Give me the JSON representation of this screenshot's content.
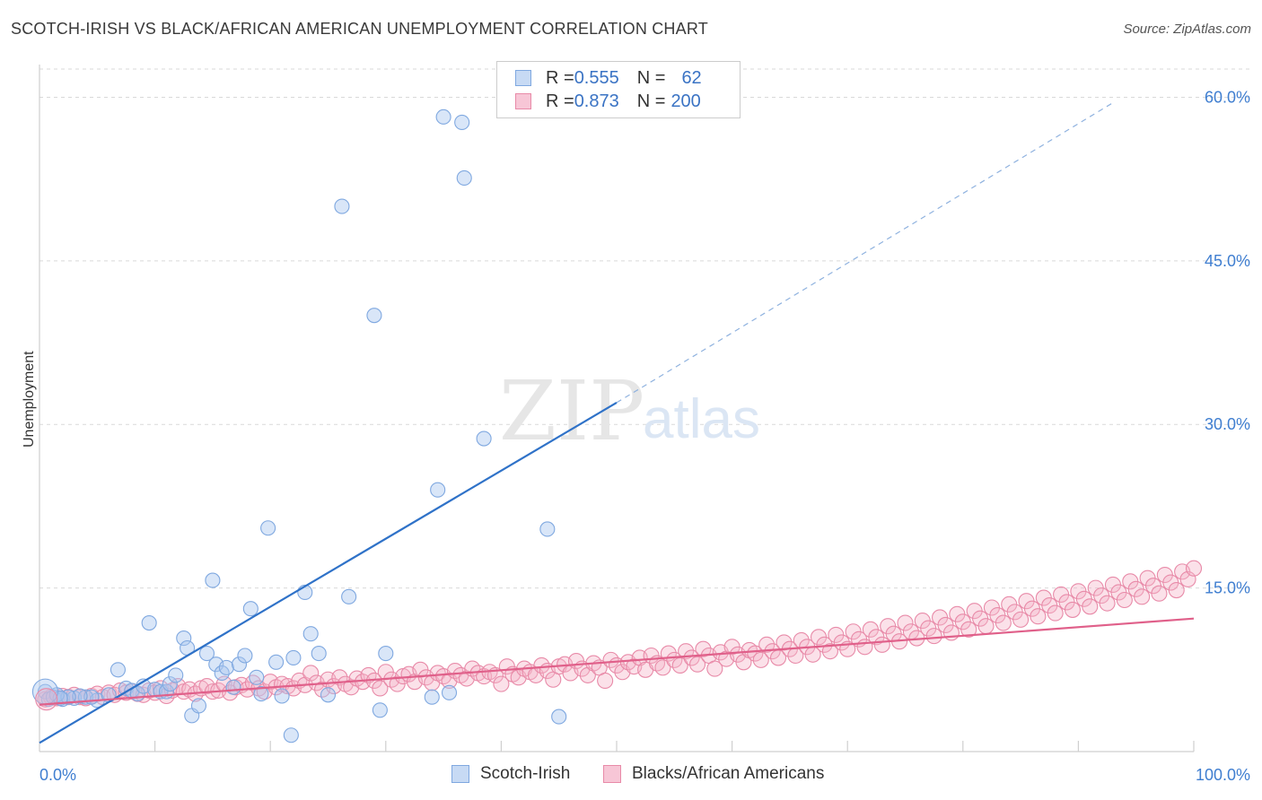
{
  "title": "SCOTCH-IRISH VS BLACK/AFRICAN AMERICAN UNEMPLOYMENT CORRELATION CHART",
  "source": "Source: ZipAtlas.com",
  "watermark": {
    "zip": "ZIP",
    "atlas": "atlas"
  },
  "legend": {
    "rows": [
      {
        "r_label": "R = ",
        "r_value": "0.555",
        "n_label": "N = ",
        "n_value": "62",
        "color": "#7fa8e0",
        "fill": "#c7daf4"
      },
      {
        "r_label": "R = ",
        "r_value": "0.873",
        "n_label": "N = ",
        "n_value": "200",
        "color": "#e88aa8",
        "fill": "#f7c6d6"
      }
    ]
  },
  "bottom_legend": [
    {
      "label": "Scotch-Irish",
      "color": "#7fa8e0",
      "fill": "#c7daf4"
    },
    {
      "label": "Blacks/African Americans",
      "color": "#e88aa8",
      "fill": "#f7c6d6"
    }
  ],
  "chart_data": {
    "type": "scatter",
    "title": "SCOTCH-IRISH VS BLACK/AFRICAN AMERICAN UNEMPLOYMENT CORRELATION CHART",
    "xlabel": "",
    "ylabel": "Unemployment",
    "xlim": [
      0,
      100
    ],
    "ylim": [
      0,
      63
    ],
    "x_tick_labels": [
      "0.0%",
      "100.0%"
    ],
    "y_ticks": [
      15,
      30,
      45,
      60
    ],
    "y_tick_labels": [
      "15.0%",
      "30.0%",
      "45.0%",
      "60.0%"
    ],
    "grid": true,
    "series": [
      {
        "name": "Scotch-Irish",
        "color": "#3f7ed0",
        "points": [
          [
            0.5,
            5.5
          ],
          [
            0.8,
            4.8
          ],
          [
            1.2,
            5.0
          ],
          [
            2.0,
            4.8
          ],
          [
            3.0,
            4.9
          ],
          [
            4.0,
            5.0
          ],
          [
            5.0,
            4.7
          ],
          [
            6.0,
            5.2
          ],
          [
            6.8,
            7.5
          ],
          [
            7.5,
            5.8
          ],
          [
            8.0,
            5.6
          ],
          [
            8.5,
            5.3
          ],
          [
            9.0,
            6.0
          ],
          [
            9.5,
            11.8
          ],
          [
            10.0,
            5.7
          ],
          [
            10.5,
            5.5
          ],
          [
            11.0,
            5.5
          ],
          [
            11.3,
            6.2
          ],
          [
            11.8,
            7.0
          ],
          [
            12.5,
            10.4
          ],
          [
            12.8,
            9.5
          ],
          [
            13.2,
            3.3
          ],
          [
            13.8,
            4.2
          ],
          [
            14.5,
            9.0
          ],
          [
            15.0,
            15.7
          ],
          [
            15.3,
            8.0
          ],
          [
            15.8,
            7.2
          ],
          [
            16.2,
            7.7
          ],
          [
            16.8,
            5.9
          ],
          [
            17.3,
            8.0
          ],
          [
            17.8,
            8.8
          ],
          [
            18.3,
            13.1
          ],
          [
            18.8,
            6.8
          ],
          [
            19.2,
            5.3
          ],
          [
            19.8,
            20.5
          ],
          [
            20.5,
            8.2
          ],
          [
            21.0,
            5.1
          ],
          [
            21.8,
            1.5
          ],
          [
            22.0,
            8.6
          ],
          [
            23.0,
            14.6
          ],
          [
            23.5,
            10.8
          ],
          [
            24.2,
            9.0
          ],
          [
            25.0,
            5.2
          ],
          [
            26.2,
            50.0
          ],
          [
            26.8,
            14.2
          ],
          [
            29.0,
            40.0
          ],
          [
            29.5,
            3.8
          ],
          [
            30.0,
            9.0
          ],
          [
            34.0,
            5.0
          ],
          [
            34.5,
            24.0
          ],
          [
            35.0,
            58.2
          ],
          [
            35.5,
            5.4
          ],
          [
            36.6,
            57.7
          ],
          [
            36.8,
            52.6
          ],
          [
            38.5,
            28.7
          ],
          [
            44.0,
            20.4
          ],
          [
            45.0,
            3.2
          ],
          [
            4.5,
            5.0
          ],
          [
            3.5,
            5.1
          ],
          [
            2.5,
            5.0
          ],
          [
            1.5,
            5.2
          ],
          [
            1.8,
            4.9
          ]
        ]
      },
      {
        "name": "Blacks/African Americans",
        "color": "#e0608a",
        "points": [
          [
            0.5,
            4.8
          ],
          [
            1.0,
            5.0
          ],
          [
            1.5,
            4.9
          ],
          [
            2.0,
            5.1
          ],
          [
            2.5,
            5.0
          ],
          [
            3.0,
            5.2
          ],
          [
            3.5,
            5.0
          ],
          [
            4.0,
            4.9
          ],
          [
            4.5,
            5.1
          ],
          [
            5.0,
            5.3
          ],
          [
            5.5,
            5.0
          ],
          [
            6.0,
            5.4
          ],
          [
            6.5,
            5.2
          ],
          [
            7.0,
            5.6
          ],
          [
            7.5,
            5.4
          ],
          [
            8.0,
            5.5
          ],
          [
            8.5,
            5.3
          ],
          [
            9.0,
            5.2
          ],
          [
            9.5,
            5.6
          ],
          [
            10.0,
            5.4
          ],
          [
            10.5,
            5.8
          ],
          [
            11.0,
            5.1
          ],
          [
            11.5,
            5.6
          ],
          [
            12.0,
            6.0
          ],
          [
            12.5,
            5.5
          ],
          [
            13.0,
            5.7
          ],
          [
            13.5,
            5.3
          ],
          [
            14.0,
            5.8
          ],
          [
            14.5,
            6.0
          ],
          [
            15.0,
            5.5
          ],
          [
            15.5,
            5.6
          ],
          [
            16.0,
            6.2
          ],
          [
            16.5,
            5.4
          ],
          [
            17.0,
            5.9
          ],
          [
            17.5,
            6.1
          ],
          [
            18.0,
            5.7
          ],
          [
            18.5,
            6.3
          ],
          [
            19.0,
            5.8
          ],
          [
            19.5,
            5.5
          ],
          [
            20.0,
            6.4
          ],
          [
            20.5,
            5.9
          ],
          [
            21.0,
            6.2
          ],
          [
            21.5,
            6.0
          ],
          [
            22.0,
            5.8
          ],
          [
            22.5,
            6.5
          ],
          [
            23.0,
            6.1
          ],
          [
            23.5,
            7.2
          ],
          [
            24.0,
            6.3
          ],
          [
            24.5,
            5.7
          ],
          [
            25.0,
            6.6
          ],
          [
            25.5,
            6.0
          ],
          [
            26.0,
            6.8
          ],
          [
            26.5,
            6.2
          ],
          [
            27.0,
            5.9
          ],
          [
            27.5,
            6.7
          ],
          [
            28.0,
            6.4
          ],
          [
            28.5,
            7.0
          ],
          [
            29.0,
            6.5
          ],
          [
            29.5,
            5.8
          ],
          [
            30.0,
            7.3
          ],
          [
            30.5,
            6.6
          ],
          [
            31.0,
            6.2
          ],
          [
            31.5,
            6.9
          ],
          [
            32.0,
            7.1
          ],
          [
            32.5,
            6.4
          ],
          [
            33.0,
            7.5
          ],
          [
            33.5,
            6.8
          ],
          [
            34.0,
            6.3
          ],
          [
            34.5,
            7.2
          ],
          [
            35.0,
            6.9
          ],
          [
            35.5,
            6.5
          ],
          [
            36.0,
            7.4
          ],
          [
            36.5,
            7.0
          ],
          [
            37.0,
            6.7
          ],
          [
            37.5,
            7.6
          ],
          [
            38.0,
            7.2
          ],
          [
            38.5,
            6.9
          ],
          [
            39.0,
            7.3
          ],
          [
            39.5,
            7.0
          ],
          [
            40.0,
            6.2
          ],
          [
            40.5,
            7.8
          ],
          [
            41.0,
            7.1
          ],
          [
            41.5,
            6.8
          ],
          [
            42.0,
            7.6
          ],
          [
            42.5,
            7.3
          ],
          [
            43.0,
            7.0
          ],
          [
            43.5,
            7.9
          ],
          [
            44.0,
            7.4
          ],
          [
            44.5,
            6.6
          ],
          [
            45.0,
            7.8
          ],
          [
            45.5,
            8.0
          ],
          [
            46.0,
            7.2
          ],
          [
            46.5,
            8.3
          ],
          [
            47.0,
            7.6
          ],
          [
            47.5,
            7.0
          ],
          [
            48.0,
            8.1
          ],
          [
            48.5,
            7.7
          ],
          [
            49.0,
            6.5
          ],
          [
            49.5,
            8.4
          ],
          [
            50.0,
            7.9
          ],
          [
            50.5,
            7.3
          ],
          [
            51.0,
            8.2
          ],
          [
            51.5,
            7.8
          ],
          [
            52.0,
            8.6
          ],
          [
            52.5,
            7.5
          ],
          [
            53.0,
            8.8
          ],
          [
            53.5,
            8.1
          ],
          [
            54.0,
            7.7
          ],
          [
            54.5,
            9.0
          ],
          [
            55.0,
            8.4
          ],
          [
            55.5,
            7.9
          ],
          [
            56.0,
            9.2
          ],
          [
            56.5,
            8.6
          ],
          [
            57.0,
            8.0
          ],
          [
            57.5,
            9.4
          ],
          [
            58.0,
            8.8
          ],
          [
            58.5,
            7.6
          ],
          [
            59.0,
            9.1
          ],
          [
            59.5,
            8.5
          ],
          [
            60.0,
            9.6
          ],
          [
            60.5,
            8.9
          ],
          [
            61.0,
            8.2
          ],
          [
            61.5,
            9.3
          ],
          [
            62.0,
            9.0
          ],
          [
            62.5,
            8.4
          ],
          [
            63.0,
            9.8
          ],
          [
            63.5,
            9.2
          ],
          [
            64.0,
            8.6
          ],
          [
            64.5,
            10.0
          ],
          [
            65.0,
            9.4
          ],
          [
            65.5,
            8.8
          ],
          [
            66.0,
            10.2
          ],
          [
            66.5,
            9.6
          ],
          [
            67.0,
            8.9
          ],
          [
            67.5,
            10.5
          ],
          [
            68.0,
            9.8
          ],
          [
            68.5,
            9.2
          ],
          [
            69.0,
            10.7
          ],
          [
            69.5,
            10.0
          ],
          [
            70.0,
            9.4
          ],
          [
            70.5,
            11.0
          ],
          [
            71.0,
            10.3
          ],
          [
            71.5,
            9.6
          ],
          [
            72.0,
            11.2
          ],
          [
            72.5,
            10.5
          ],
          [
            73.0,
            9.8
          ],
          [
            73.5,
            11.5
          ],
          [
            74.0,
            10.8
          ],
          [
            74.5,
            10.1
          ],
          [
            75.0,
            11.8
          ],
          [
            75.5,
            11.0
          ],
          [
            76.0,
            10.4
          ],
          [
            76.5,
            12.0
          ],
          [
            77.0,
            11.3
          ],
          [
            77.5,
            10.6
          ],
          [
            78.0,
            12.3
          ],
          [
            78.5,
            11.6
          ],
          [
            79.0,
            10.9
          ],
          [
            79.5,
            12.6
          ],
          [
            80.0,
            11.9
          ],
          [
            80.5,
            11.2
          ],
          [
            81.0,
            12.9
          ],
          [
            81.5,
            12.2
          ],
          [
            82.0,
            11.5
          ],
          [
            82.5,
            13.2
          ],
          [
            83.0,
            12.5
          ],
          [
            83.5,
            11.8
          ],
          [
            84.0,
            13.5
          ],
          [
            84.5,
            12.8
          ],
          [
            85.0,
            12.1
          ],
          [
            85.5,
            13.8
          ],
          [
            86.0,
            13.1
          ],
          [
            86.5,
            12.4
          ],
          [
            87.0,
            14.1
          ],
          [
            87.5,
            13.4
          ],
          [
            88.0,
            12.7
          ],
          [
            88.5,
            14.4
          ],
          [
            89.0,
            13.7
          ],
          [
            89.5,
            13.0
          ],
          [
            90.0,
            14.7
          ],
          [
            90.5,
            14.0
          ],
          [
            91.0,
            13.3
          ],
          [
            91.5,
            15.0
          ],
          [
            92.0,
            14.3
          ],
          [
            92.5,
            13.6
          ],
          [
            93.0,
            15.3
          ],
          [
            93.5,
            14.6
          ],
          [
            94.0,
            13.9
          ],
          [
            94.5,
            15.6
          ],
          [
            95.0,
            14.9
          ],
          [
            95.5,
            14.2
          ],
          [
            96.0,
            15.9
          ],
          [
            96.5,
            15.2
          ],
          [
            97.0,
            14.5
          ],
          [
            97.5,
            16.2
          ],
          [
            98.0,
            15.5
          ],
          [
            98.5,
            14.8
          ],
          [
            99.0,
            16.5
          ],
          [
            99.5,
            15.8
          ],
          [
            100.0,
            16.8
          ]
        ]
      }
    ],
    "trendlines": [
      {
        "series": "Scotch-Irish",
        "from": [
          0,
          0.8
        ],
        "to": [
          50,
          32.0
        ],
        "dashed_to": [
          93,
          59.5
        ]
      },
      {
        "series": "Blacks/African Americans",
        "from": [
          0,
          4.3
        ],
        "to": [
          100,
          12.2
        ]
      }
    ]
  }
}
